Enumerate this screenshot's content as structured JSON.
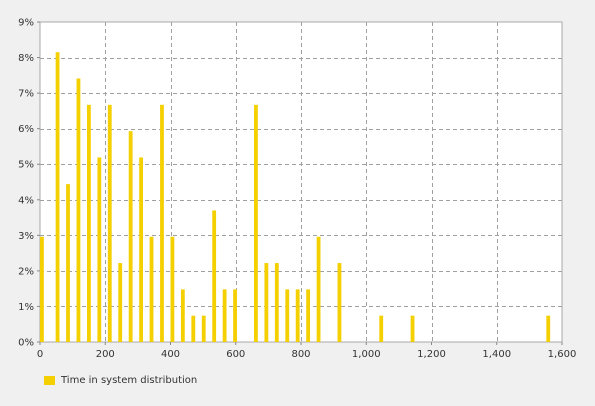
{
  "chart_data": {
    "type": "bar",
    "bin_width": 16,
    "series": [
      {
        "name": "Time in system distribution",
        "color": "#f5d000",
        "bins": [
          {
            "x": 0,
            "y": 2.96
          },
          {
            "x": 48,
            "y": 8.15
          },
          {
            "x": 80,
            "y": 4.44
          },
          {
            "x": 112,
            "y": 7.41
          },
          {
            "x": 144,
            "y": 6.67
          },
          {
            "x": 176,
            "y": 5.19
          },
          {
            "x": 208,
            "y": 6.67
          },
          {
            "x": 240,
            "y": 2.22
          },
          {
            "x": 272,
            "y": 5.93
          },
          {
            "x": 304,
            "y": 5.19
          },
          {
            "x": 336,
            "y": 2.96
          },
          {
            "x": 368,
            "y": 6.67
          },
          {
            "x": 400,
            "y": 2.96
          },
          {
            "x": 432,
            "y": 1.48
          },
          {
            "x": 464,
            "y": 0.74
          },
          {
            "x": 496,
            "y": 0.74
          },
          {
            "x": 528,
            "y": 3.7
          },
          {
            "x": 560,
            "y": 1.48
          },
          {
            "x": 592,
            "y": 1.48
          },
          {
            "x": 656,
            "y": 6.67
          },
          {
            "x": 688,
            "y": 2.22
          },
          {
            "x": 720,
            "y": 2.22
          },
          {
            "x": 752,
            "y": 1.48
          },
          {
            "x": 784,
            "y": 1.48
          },
          {
            "x": 816,
            "y": 1.48
          },
          {
            "x": 848,
            "y": 2.96
          },
          {
            "x": 912,
            "y": 2.22
          },
          {
            "x": 1040,
            "y": 0.74
          },
          {
            "x": 1136,
            "y": 0.74
          },
          {
            "x": 1552,
            "y": 0.74
          }
        ]
      }
    ],
    "xlim": [
      0,
      1600
    ],
    "ylim": [
      0,
      9
    ],
    "x_ticks": [
      0,
      200,
      400,
      600,
      800,
      1000,
      1200,
      1400,
      1600
    ],
    "x_tick_labels": [
      "0",
      "200",
      "400",
      "600",
      "800",
      "1,000",
      "1,200",
      "1,400",
      "1,600"
    ],
    "y_ticks": [
      0,
      1,
      2,
      3,
      4,
      5,
      6,
      7,
      8,
      9
    ],
    "y_tick_labels": [
      "0%",
      "1%",
      "2%",
      "3%",
      "4%",
      "5%",
      "6%",
      "7%",
      "8%",
      "9%"
    ],
    "grid": true,
    "legend_position": "bottom-left"
  }
}
